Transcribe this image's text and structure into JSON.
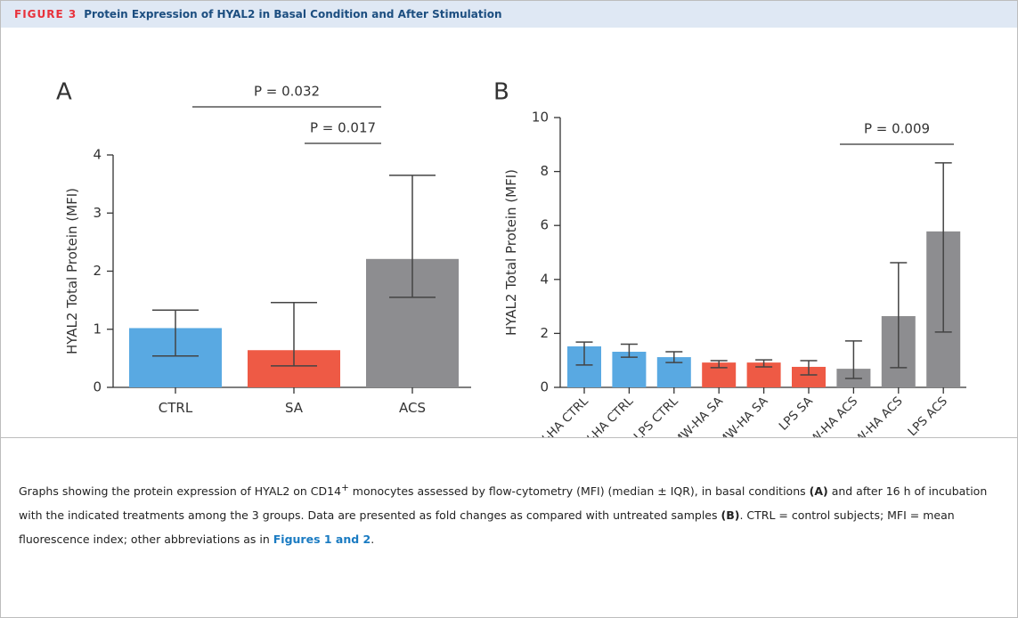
{
  "header": {
    "label": "FIGURE 3",
    "title": "Protein Expression of HYAL2 in Basal Condition and After Stimulation"
  },
  "chart_data": [
    {
      "type": "bar",
      "panel": "A",
      "ylabel": "HYAL2 Total Protein (MFI)",
      "categories": [
        "CTRL",
        "SA",
        "ACS"
      ],
      "values": [
        1.02,
        0.64,
        2.21
      ],
      "lower": [
        0.54,
        0.37,
        1.55
      ],
      "upper": [
        1.33,
        1.46,
        3.65
      ],
      "colors": [
        "#59a9e2",
        "#ee5a45",
        "#8d8d90"
      ],
      "ylim": [
        0,
        4
      ],
      "yticks": [
        0,
        1,
        2,
        3,
        4
      ],
      "annotations": [
        "P = 0.032",
        "P = 0.017"
      ]
    },
    {
      "type": "bar",
      "panel": "B",
      "ylabel": "HYAL2 Total Protein (MFI)",
      "categories": [
        "HMW-HA CTRL",
        "LMW-HA CTRL",
        "LPS CTRL",
        "HMW-HA SA",
        "LMW-HA SA",
        "LPS SA",
        "HMW-HA ACS",
        "LMW-HA ACS",
        "LPS ACS"
      ],
      "values": [
        1.52,
        1.32,
        1.12,
        0.92,
        0.92,
        0.76,
        0.69,
        2.64,
        5.78
      ],
      "lower": [
        0.83,
        1.12,
        0.92,
        0.73,
        0.76,
        0.46,
        0.33,
        0.73,
        2.05
      ],
      "upper": [
        1.68,
        1.6,
        1.32,
        0.99,
        1.02,
        0.99,
        1.72,
        4.62,
        8.32
      ],
      "colors": [
        "#59a9e2",
        "#59a9e2",
        "#59a9e2",
        "#ee5a45",
        "#ee5a45",
        "#ee5a45",
        "#8d8d90",
        "#8d8d90",
        "#8d8d90"
      ],
      "ylim": [
        0,
        10
      ],
      "yticks": [
        0,
        2,
        4,
        6,
        8,
        10
      ],
      "annotations": [
        "P = 0.009"
      ]
    }
  ],
  "caption": [
    "Graphs showing the protein expression of HYAL2 on CD14",
    "+",
    " monocytes assessed by flow-cytometry (MFI) (median ± IQR), in basal conditions ",
    "(A)",
    " and after 16 h of incubation with the indicated treatments among the 3 groups. Data are presented as fold changes as compared with untreated samples ",
    "(B)",
    ". CTRL = control subjects; MFI = mean fluorescence index; other abbreviations as in ",
    "Figures 1 and 2",
    "."
  ]
}
